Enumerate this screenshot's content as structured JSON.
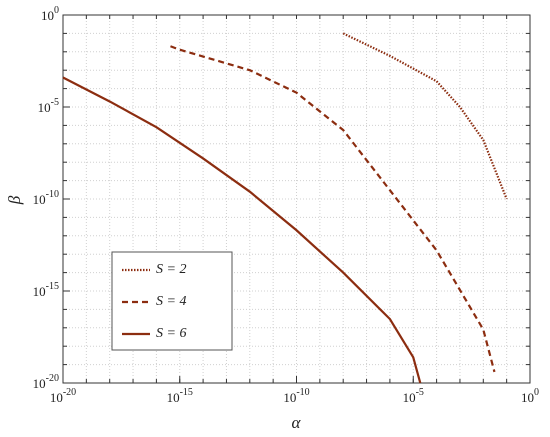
{
  "chart_data": {
    "type": "line",
    "x_label": "α",
    "y_label": "β",
    "log_x": true,
    "log_y": true,
    "grid": true,
    "legend": "lower left",
    "xlim": [
      1e-20,
      1
    ],
    "ylim": [
      1e-20,
      1
    ],
    "xticks": [
      {
        "value": 1e-20,
        "label": "10",
        "sup": "-20"
      },
      {
        "value": 1e-15,
        "label": "10",
        "sup": "-15"
      },
      {
        "value": 1e-10,
        "label": "10",
        "sup": "-10"
      },
      {
        "value": 1e-05,
        "label": "10",
        "sup": "-5"
      },
      {
        "value": 1,
        "label": "10",
        "sup": "0"
      }
    ],
    "yticks": [
      {
        "value": 1e-20,
        "label": "10",
        "sup": "-20"
      },
      {
        "value": 1e-15,
        "label": "10",
        "sup": "-15"
      },
      {
        "value": 1e-10,
        "label": "10",
        "sup": "-10"
      },
      {
        "value": 1e-05,
        "label": "10",
        "sup": "-5"
      },
      {
        "value": 1,
        "label": "10",
        "sup": "0"
      }
    ],
    "series": [
      {
        "name": "S = 2",
        "color": "#8c2d10",
        "style": "dotted",
        "x": [
          1e-08,
          1e-06,
          0.0001,
          0.001,
          0.01,
          0.1
        ],
        "values": [
          0.1,
          0.006,
          0.00025,
          1e-05,
          1.6e-07,
          1e-10
        ]
      },
      {
        "name": "S = 4",
        "color": "#8c2d10",
        "style": "dashed",
        "x": [
          4e-16,
          1e-15,
          1e-12,
          1e-10,
          1e-08,
          1e-06,
          0.0001,
          0.01,
          0.03
        ],
        "values": [
          0.02,
          0.013,
          0.001,
          6e-05,
          5.6e-07,
          3e-10,
          1.6e-13,
          8e-18,
          4e-20
        ]
      },
      {
        "name": "S = 6",
        "color": "#8c2d10",
        "style": "solid",
        "x": [
          1e-20,
          1e-18,
          1e-16,
          1e-14,
          1e-12,
          1e-10,
          1e-08,
          1e-06,
          1e-05,
          2e-05
        ],
        "values": [
          0.0004,
          2e-05,
          8e-07,
          1.6e-08,
          2.5e-10,
          2e-12,
          1e-14,
          3e-17,
          2.5e-19,
          1e-20
        ]
      }
    ]
  }
}
